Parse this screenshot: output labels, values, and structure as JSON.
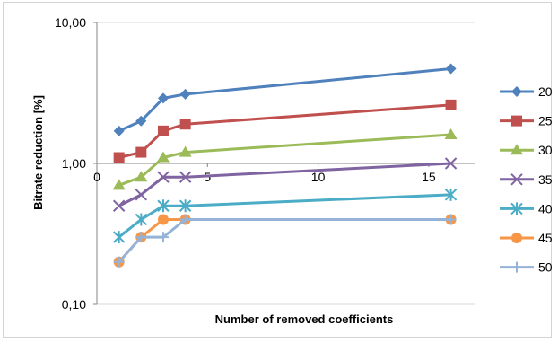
{
  "chart_data": {
    "type": "line",
    "title": "",
    "xlabel": "Number of removed coefficients",
    "ylabel": "Bitrate reduction [%]",
    "x_scale": "linear",
    "y_scale": "log",
    "xlim": [
      0,
      16
    ],
    "ylim": [
      0.1,
      10
    ],
    "x_ticks": [
      "0",
      "5",
      "10",
      "15"
    ],
    "y_ticks": [
      "0,10",
      "1,00",
      "10,00"
    ],
    "grid": "horizontal",
    "legend_position": "right",
    "x": [
      1,
      2,
      3,
      4,
      16
    ],
    "series": [
      {
        "name": "20",
        "values": [
          1.7,
          2.0,
          2.9,
          3.1,
          4.7
        ],
        "color": "#4F81BD",
        "marker": "diamond"
      },
      {
        "name": "25",
        "values": [
          1.1,
          1.2,
          1.7,
          1.9,
          2.6
        ],
        "color": "#C0504D",
        "marker": "square"
      },
      {
        "name": "30",
        "values": [
          0.7,
          0.8,
          1.1,
          1.2,
          1.6
        ],
        "color": "#9BBB59",
        "marker": "triangle"
      },
      {
        "name": "35",
        "values": [
          0.5,
          0.6,
          0.8,
          0.8,
          1.0
        ],
        "color": "#8064A2",
        "marker": "x"
      },
      {
        "name": "40",
        "values": [
          0.3,
          0.4,
          0.5,
          0.5,
          0.6
        ],
        "color": "#4BACC6",
        "marker": "star"
      },
      {
        "name": "45",
        "values": [
          0.2,
          0.3,
          0.4,
          0.4,
          0.4
        ],
        "color": "#F79646",
        "marker": "circle"
      },
      {
        "name": "50",
        "values": [
          0.2,
          0.3,
          0.3,
          0.4,
          0.4
        ],
        "color": "#95B3D7",
        "marker": "plus"
      }
    ]
  }
}
